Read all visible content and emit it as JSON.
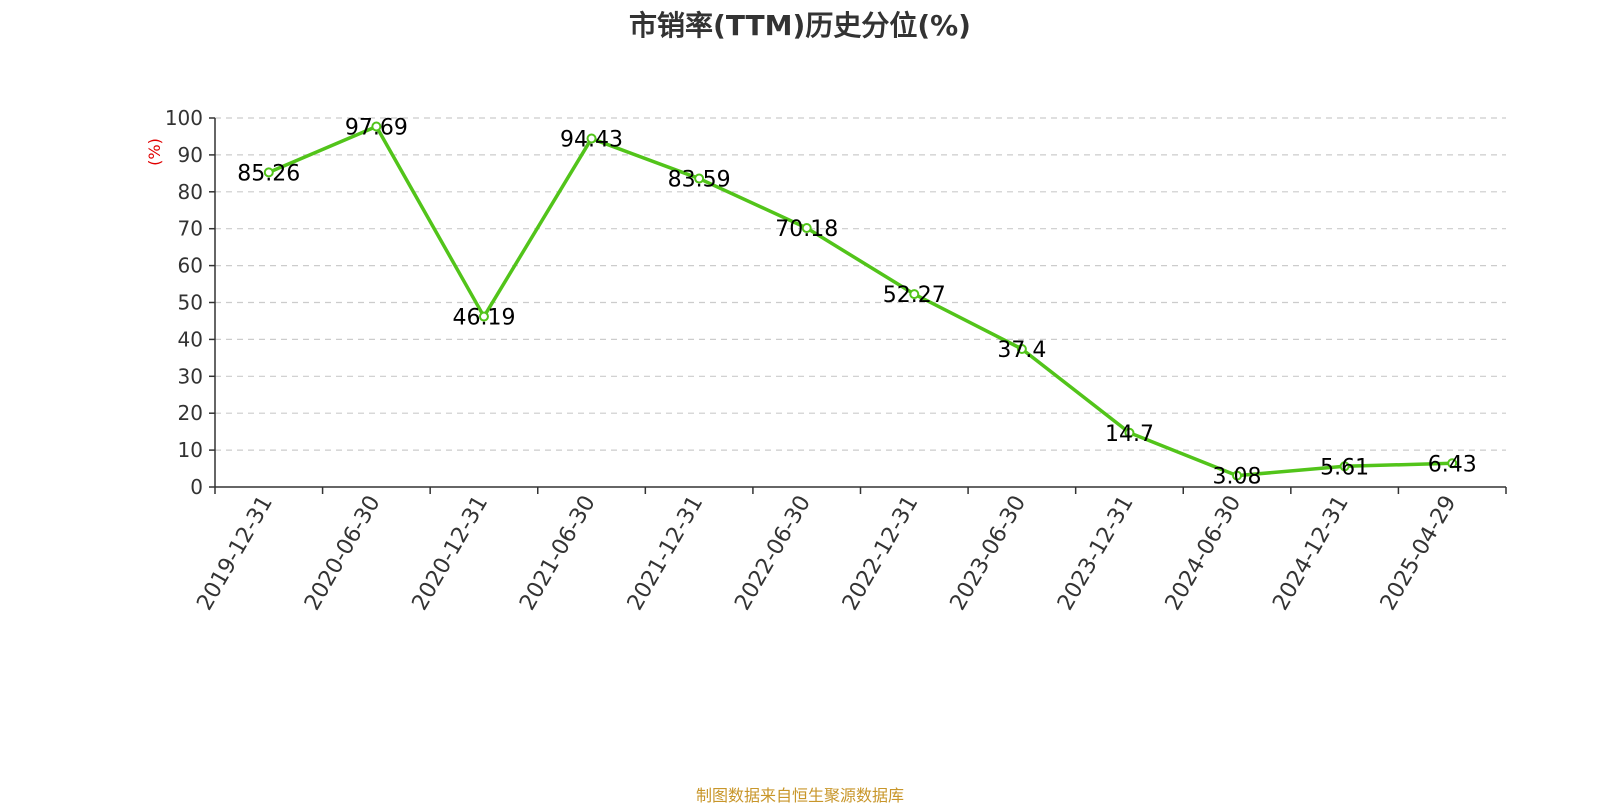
{
  "chart_data": {
    "type": "line",
    "title": "市销率(TTM)历史分位(%)",
    "ylabel": "(%)",
    "xlabel": "",
    "ylim": [
      0,
      100
    ],
    "yticks": [
      0,
      10,
      20,
      30,
      40,
      50,
      60,
      70,
      80,
      90,
      100
    ],
    "grid": true,
    "categories": [
      "2019-12-31",
      "2020-06-30",
      "2020-12-31",
      "2021-06-30",
      "2021-12-31",
      "2022-06-30",
      "2022-12-31",
      "2023-06-30",
      "2023-12-31",
      "2024-06-30",
      "2024-12-31",
      "2025-04-29"
    ],
    "series": [
      {
        "values": [
          85.26,
          97.69,
          46.19,
          94.43,
          83.59,
          70.18,
          52.27,
          37.4,
          14.7,
          3.08,
          5.61,
          6.43
        ],
        "labels": [
          "85.26",
          "97.69",
          "46.19",
          "94.43",
          "83.59",
          "70.18",
          "52.27",
          "37.4",
          "14.7",
          "3.08",
          "5.61",
          "6.43"
        ],
        "color": "#52c41a"
      }
    ],
    "ylabel_color": "#e00000",
    "grid_color": "#cccccc"
  },
  "footer": {
    "source": "制图数据来自恒生聚源数据库",
    "source_color": "#c8962a"
  }
}
